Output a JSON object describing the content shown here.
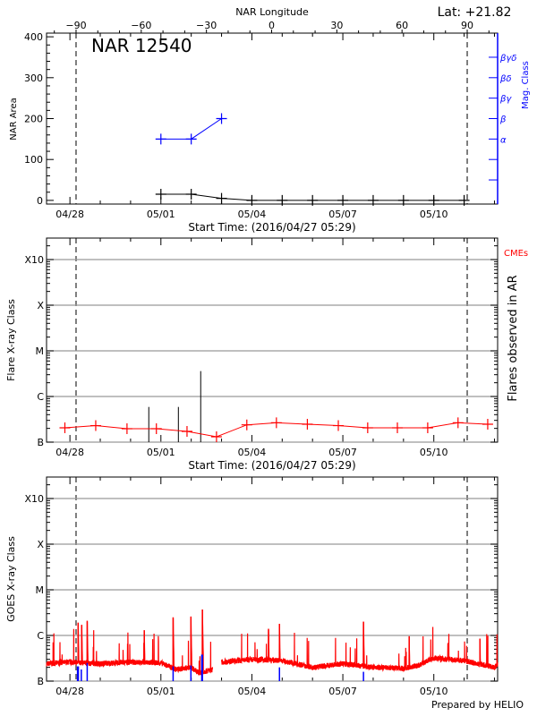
{
  "header": {
    "lat_label": "Lat: +21.82",
    "top_axis_title": "NAR Longitude",
    "credit": "Prepared by HELIO"
  },
  "colors": {
    "axes": "#000000",
    "mag_class": "#0000ff",
    "flux": "#ff0000",
    "cme": "#ff0000",
    "grid": "#999999",
    "flare_marker": "#0000ff"
  },
  "chart_data": [
    {
      "type": "line",
      "title": "NAR 12540",
      "xlabel": "Start Time: (2016/04/27 05:29)",
      "ylabel": "NAR Area",
      "y2label": "Mag. Class",
      "xlim": [
        "2016-04-27T05:29",
        "2016-05-12T02:30"
      ],
      "ylim": [
        -9,
        409
      ],
      "yticks": [
        0,
        100,
        200,
        300,
        400
      ],
      "xtick_labels": [
        {
          "date": "2016-04-28T00:00",
          "label": "04/28"
        },
        {
          "date": "2016-05-01T00:00",
          "label": "05/01"
        },
        {
          "date": "2016-05-04T00:00",
          "label": "05/04"
        },
        {
          "date": "2016-05-07T00:00",
          "label": "05/07"
        },
        {
          "date": "2016-05-10T00:00",
          "label": "05/10"
        }
      ],
      "top_axis": {
        "title": "NAR Longitude",
        "ticks": [
          -90,
          -60,
          -30,
          0,
          30,
          60,
          90
        ],
        "limb_lines": [
          -90,
          90
        ]
      },
      "mag_class_axis": {
        "levels": [
          {
            "value": 50,
            "label": ""
          },
          {
            "value": 100,
            "label": ""
          },
          {
            "value": 150,
            "label": "α"
          },
          {
            "value": 200,
            "label": "β"
          },
          {
            "value": 250,
            "label": "βγ"
          },
          {
            "value": 300,
            "label": "βδ"
          },
          {
            "value": 350,
            "label": "βγδ"
          }
        ]
      },
      "series": [
        {
          "key": "area",
          "color": "#000000",
          "x": [
            "2016-05-01T00:00",
            "2016-05-02T00:00",
            "2016-05-03T00:00",
            "2016-05-04T00:00",
            "2016-05-05T00:00",
            "2016-05-06T00:00",
            "2016-05-07T00:00",
            "2016-05-08T00:00",
            "2016-05-09T00:00",
            "2016-05-10T00:00",
            "2016-05-11T00:00"
          ],
          "y": [
            15,
            15,
            5,
            0,
            0,
            0,
            0,
            0,
            0,
            0,
            0
          ]
        },
        {
          "key": "mag_class",
          "color": "#0000ff",
          "x": [
            "2016-05-01T00:00",
            "2016-05-02T00:00",
            "2016-05-03T00:00"
          ],
          "y": [
            150,
            150,
            200
          ],
          "classes": [
            "α",
            "α",
            "β"
          ]
        }
      ]
    },
    {
      "type": "bar",
      "xlabel": "Start Time: (2016/04/27 05:29)",
      "ylabel": "Flare X-ray Class",
      "y2label": "Flares observed in AR",
      "legend": "CMEs",
      "yscale": "log",
      "ylim": [
        1e-07,
        0.003
      ],
      "ytick_labels": [
        {
          "value": 1e-07,
          "label": "B"
        },
        {
          "value": 1e-06,
          "label": "C"
        },
        {
          "value": 1e-05,
          "label": "M"
        },
        {
          "value": 0.0001,
          "label": "X"
        },
        {
          "value": 0.001,
          "label": "X10"
        }
      ],
      "grid": true,
      "flares": [
        {
          "date": "2016-04-30T14:25",
          "peak": 5.9e-07
        },
        {
          "date": "2016-05-01T13:50",
          "peak": 5.9e-07
        },
        {
          "date": "2016-05-02T07:30",
          "peak": 3.6e-06
        }
      ],
      "cmes": {
        "color": "#ff0000",
        "x": [
          "2016-04-27T20:00",
          "2016-04-28T20:25",
          "2016-04-29T21:10",
          "2016-04-30T20:25",
          "2016-05-01T20:40",
          "2016-05-02T20:00",
          "2016-05-03T20:00",
          "2016-05-04T19:25",
          "2016-05-05T19:55",
          "2016-05-06T20:25",
          "2016-05-07T19:40",
          "2016-05-08T19:10",
          "2016-05-09T19:10",
          "2016-05-10T19:10",
          "2016-05-11T18:40"
        ],
        "y": [
          2.06e-07,
          2.3e-07,
          1.97e-07,
          1.97e-07,
          1.72e-07,
          1.31e-07,
          2.39e-07,
          2.66e-07,
          2.47e-07,
          2.3e-07,
          2.06e-07,
          2.06e-07,
          2.06e-07,
          2.66e-07,
          2.47e-07
        ]
      }
    },
    {
      "type": "line",
      "ylabel": "GOES X-ray Class",
      "yscale": "log",
      "ylim": [
        1e-07,
        0.003
      ],
      "grid": true,
      "baseline": [
        [
          "2016-04-27T05:29",
          2.4e-07
        ],
        [
          "2016-04-28T00:00",
          2.6e-07
        ],
        [
          "2016-04-29T00:00",
          2.4e-07
        ],
        [
          "2016-04-30T00:00",
          2.6e-07
        ],
        [
          "2016-05-01T00:00",
          2.5e-07
        ],
        [
          "2016-05-01T12:00",
          1.8e-07
        ],
        [
          "2016-05-02T00:00",
          2e-07
        ],
        [
          "2016-05-02T06:00",
          1.5e-07
        ],
        [
          "2016-05-02T16:50",
          1.8e-07
        ],
        [
          "2016-05-03T00:00",
          2.6e-07
        ],
        [
          "2016-05-04T00:00",
          3e-07
        ],
        [
          "2016-05-05T00:00",
          2.8e-07
        ],
        [
          "2016-05-06T00:00",
          2e-07
        ],
        [
          "2016-05-07T00:00",
          2.4e-07
        ],
        [
          "2016-05-08T00:00",
          2e-07
        ],
        [
          "2016-05-09T00:00",
          1.9e-07
        ],
        [
          "2016-05-09T12:00",
          2.2e-07
        ],
        [
          "2016-05-10T00:00",
          3.2e-07
        ],
        [
          "2016-05-11T00:00",
          2.8e-07
        ],
        [
          "2016-05-12T00:00",
          2e-07
        ],
        [
          "2016-05-12T02:30",
          2.3e-07
        ]
      ],
      "data_gap": [
        "2016-05-02T16:50",
        "2016-05-03T00:00"
      ],
      "spikes": [
        [
          "2016-04-28T06:30",
          1.9e-06
        ],
        [
          "2016-04-28T09:20",
          1.7e-06
        ],
        [
          "2016-04-28T13:40",
          2.1e-06
        ],
        [
          "2016-04-30T10:50",
          1.3e-06
        ],
        [
          "2016-05-01T09:40",
          2.5e-06
        ],
        [
          "2016-05-01T23:45",
          2.6e-06
        ],
        [
          "2016-05-02T08:50",
          3.7e-06
        ],
        [
          "2016-05-04T13:10",
          1.4e-06
        ],
        [
          "2016-05-04T21:50",
          1.8e-06
        ],
        [
          "2016-05-07T16:20",
          2e-06
        ],
        [
          "2016-05-09T04:30",
          9.6e-07
        ],
        [
          "2016-05-11T12:30",
          8.5e-07
        ]
      ],
      "flare_markers": [
        [
          "2016-04-28T06:00",
          2.1e-07
        ],
        [
          "2016-04-28T06:40",
          2.1e-07
        ],
        [
          "2016-04-28T09:00",
          1.8e-07
        ],
        [
          "2016-04-28T13:40",
          2.5e-07
        ],
        [
          "2016-05-01T09:40",
          2.1e-07
        ],
        [
          "2016-05-01T23:45",
          2.2e-07
        ],
        [
          "2016-05-02T08:20",
          3.8e-07
        ],
        [
          "2016-05-02T08:50",
          3.8e-07
        ],
        [
          "2016-05-04T21:50",
          2e-07
        ],
        [
          "2016-05-07T16:20",
          1.6e-07
        ]
      ]
    }
  ]
}
